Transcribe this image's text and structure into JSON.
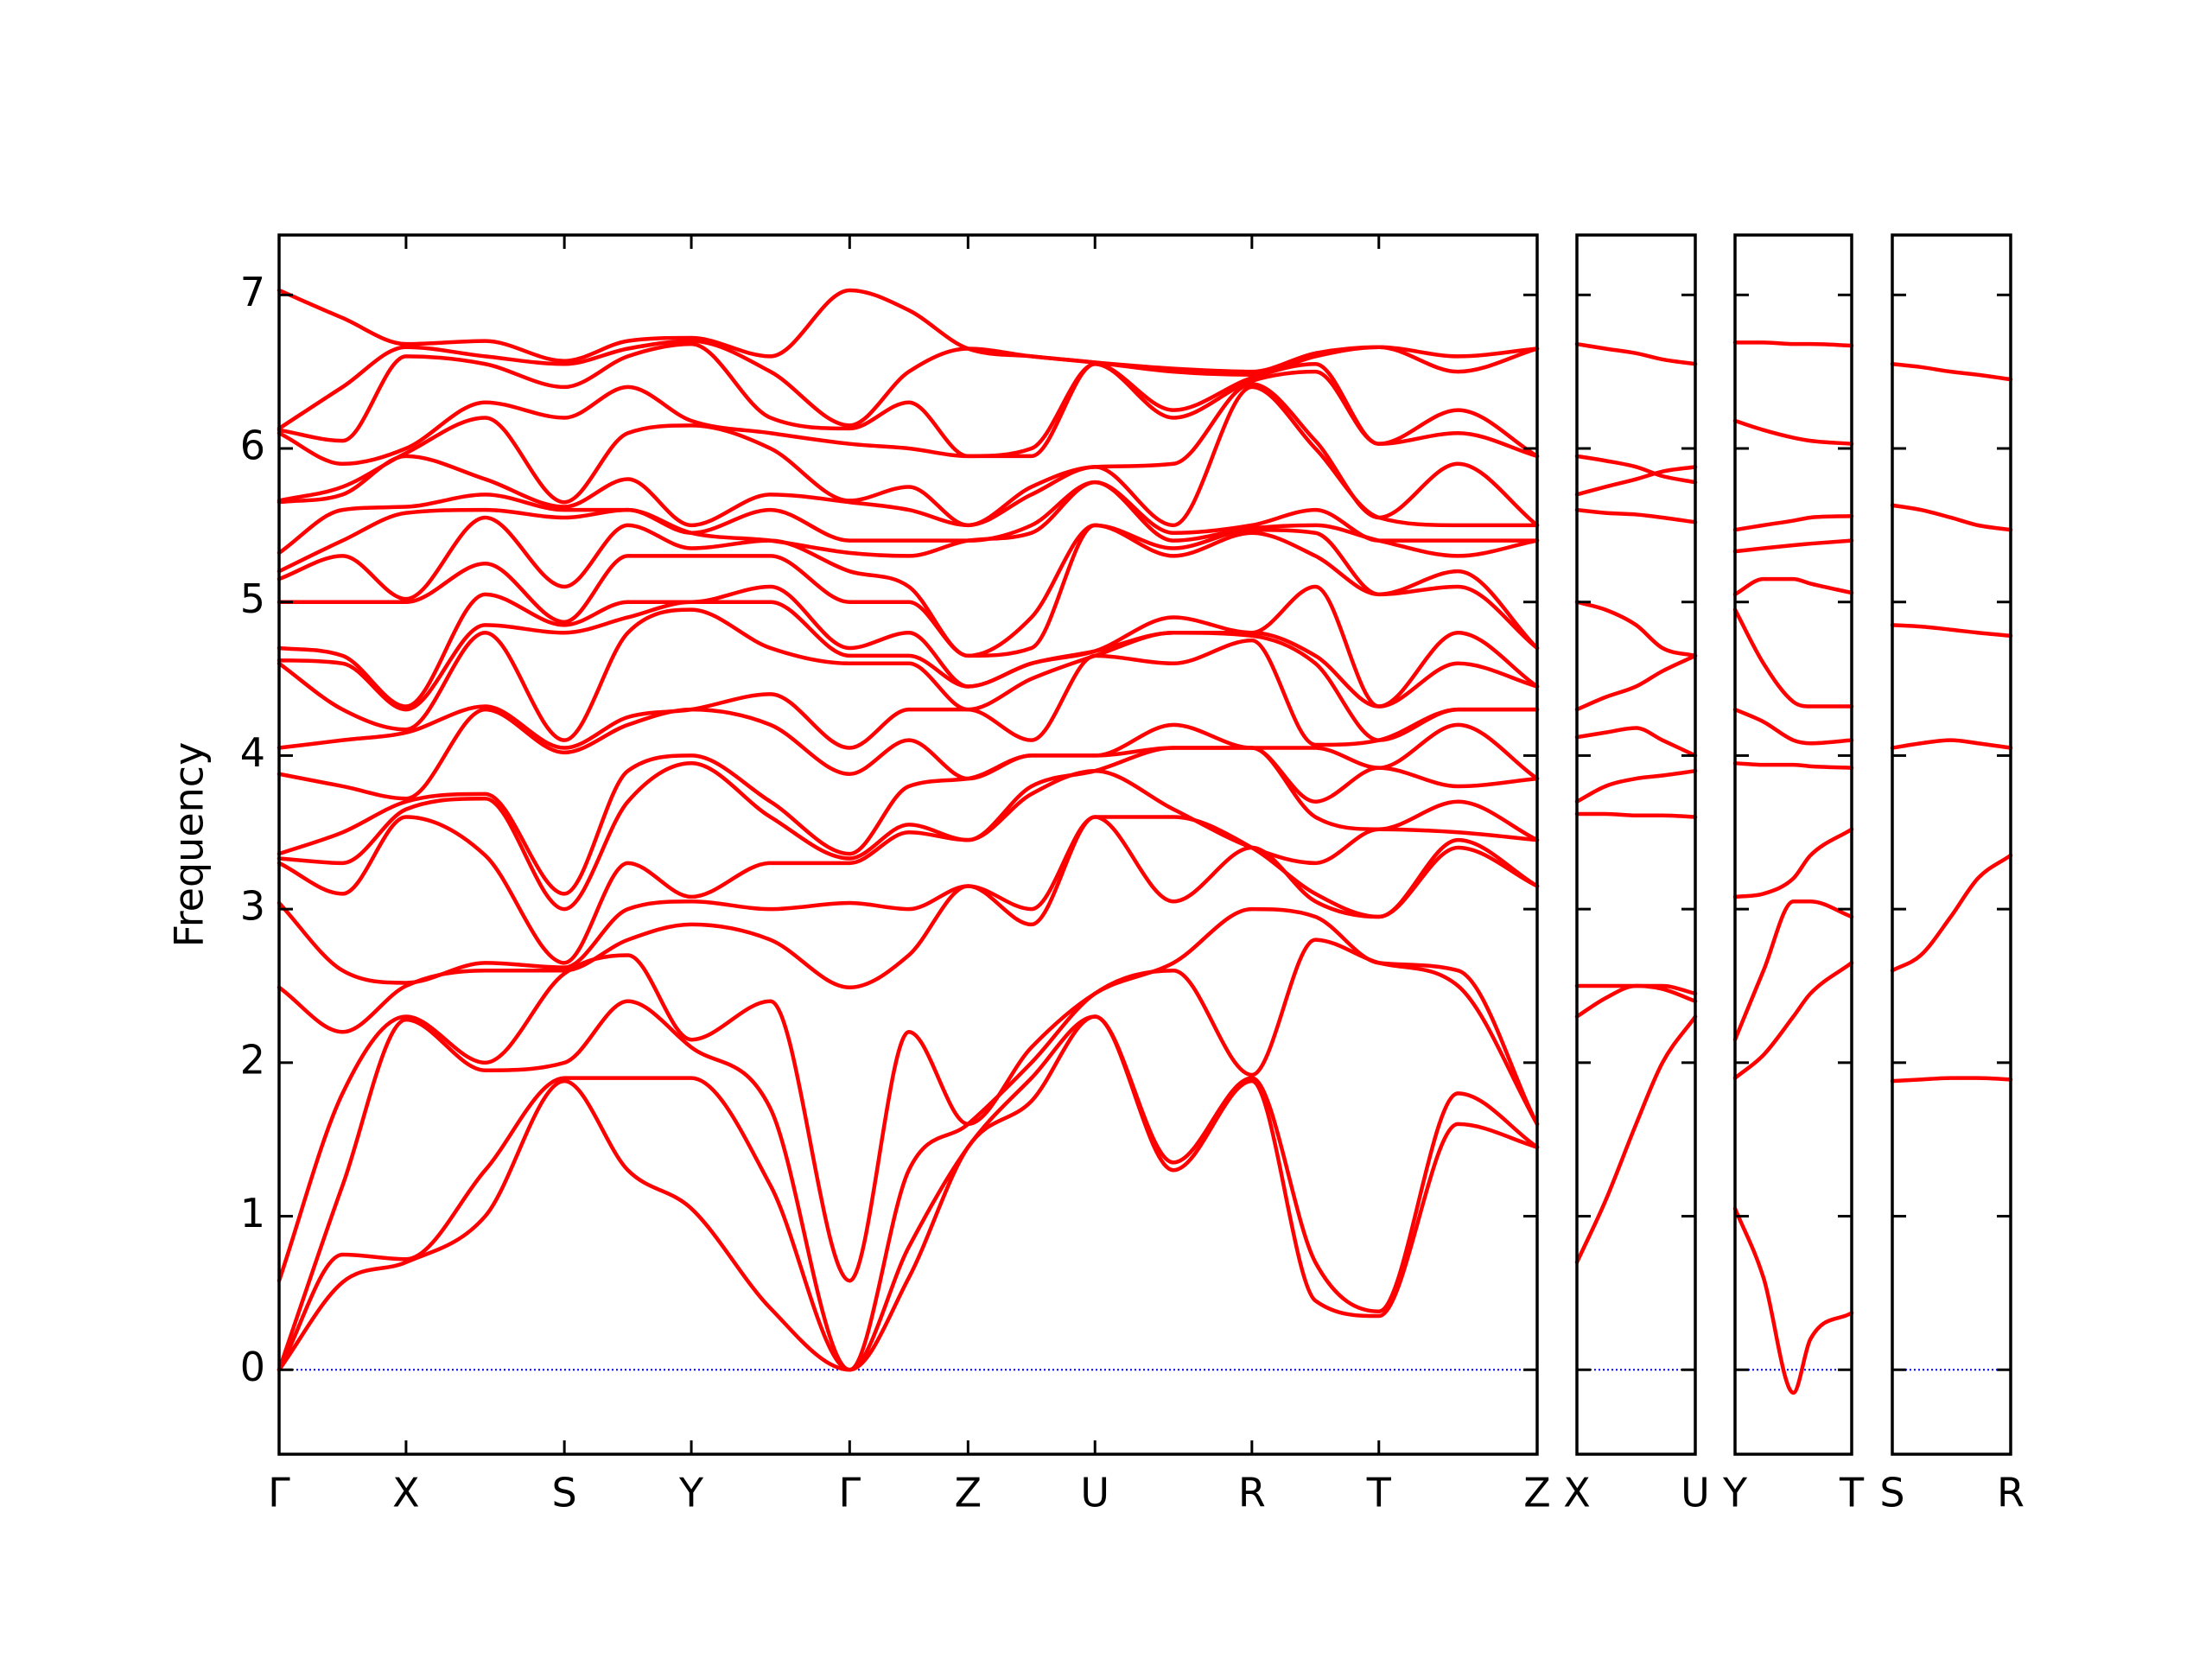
{
  "chart_data": [
    {
      "type": "line",
      "ylabel": "Frequency",
      "color": "#ff0000",
      "show_yticklabels": true,
      "hline": 0,
      "hline_color": "#0000ff",
      "xlim": [
        0,
        8.82
      ],
      "ylim": [
        -0.55,
        7.39
      ],
      "yticks": [
        0,
        1,
        2,
        3,
        4,
        5,
        6,
        7
      ],
      "xticks": [
        {
          "value": 0,
          "label": "Γ"
        },
        {
          "value": 0.89,
          "label": "X"
        },
        {
          "value": 2.0,
          "label": "S"
        },
        {
          "value": 2.89,
          "label": "Y"
        },
        {
          "value": 4.0,
          "label": "Γ"
        },
        {
          "value": 4.83,
          "label": "Z"
        },
        {
          "value": 5.72,
          "label": "U"
        },
        {
          "value": 6.82,
          "label": "R"
        },
        {
          "value": 7.71,
          "label": "T"
        },
        {
          "value": 8.82,
          "label": "Z"
        }
      ],
      "x": [
        0,
        0.445,
        0.89,
        1.445,
        2.0,
        2.445,
        2.89,
        3.445,
        4.0,
        4.415,
        4.83,
        5.275,
        5.72,
        6.27,
        6.82,
        7.265,
        7.71,
        8.265,
        8.82
      ],
      "series": [
        {
          "values": [
            0,
            0.57,
            0.7,
            1.0,
            1.88,
            1.3,
            1.05,
            0.4,
            0,
            0.6,
            1.45,
            1.75,
            2.3,
            1.3,
            1.88,
            0.45,
            0.35,
            1.6,
            1.45
          ]
        },
        {
          "values": [
            0,
            0.75,
            0.72,
            1.3,
            1.9,
            1.9,
            1.9,
            1.2,
            0,
            0.8,
            1.45,
            1.9,
            2.3,
            1.35,
            1.9,
            0.7,
            0.38,
            1.8,
            1.45
          ]
        },
        {
          "values": [
            0,
            1.2,
            2.28,
            1.95,
            2.0,
            2.4,
            2.1,
            1.7,
            0,
            1.3,
            1.6,
            2.0,
            2.45,
            2.6,
            1.92,
            2.8,
            2.65,
            2.5,
            1.6
          ]
        },
        {
          "values": [
            0.58,
            1.8,
            2.3,
            2.0,
            2.58,
            2.7,
            2.15,
            2.4,
            0.58,
            2.2,
            1.6,
            2.1,
            2.45,
            2.65,
            3.0,
            2.95,
            2.65,
            2.6,
            1.6
          ]
        },
        {
          "values": [
            2.49,
            2.2,
            2.5,
            2.6,
            2.6,
            2.8,
            2.9,
            2.8,
            2.49,
            2.7,
            3.15,
            2.9,
            3.6,
            3.05,
            3.4,
            3.05,
            2.95,
            3.4,
            3.15
          ]
        },
        {
          "values": [
            3.04,
            2.6,
            2.52,
            2.65,
            2.62,
            3.0,
            3.05,
            3.0,
            3.04,
            3.0,
            3.15,
            3.0,
            3.6,
            3.6,
            3.4,
            3.1,
            2.95,
            3.45,
            3.15
          ]
        },
        {
          "values": [
            3.3,
            3.1,
            3.6,
            3.35,
            2.65,
            3.3,
            3.08,
            3.3,
            3.3,
            3.5,
            3.45,
            3.75,
            3.9,
            3.65,
            3.4,
            3.3,
            3.52,
            3.5,
            3.45
          ]
        },
        {
          "values": [
            3.33,
            3.3,
            3.65,
            3.72,
            3.0,
            3.7,
            3.95,
            3.6,
            3.33,
            3.55,
            3.45,
            3.8,
            3.9,
            4.05,
            4.05,
            3.6,
            3.52,
            3.7,
            3.45
          ]
        },
        {
          "values": [
            3.36,
            3.5,
            3.7,
            3.75,
            3.1,
            3.9,
            4.0,
            3.7,
            3.36,
            3.8,
            3.85,
            4.0,
            4.0,
            4.05,
            4.05,
            3.7,
            3.92,
            3.8,
            3.85
          ]
        },
        {
          "values": [
            3.88,
            3.8,
            3.72,
            4.3,
            4.02,
            4.2,
            4.3,
            4.2,
            3.88,
            4.1,
            3.85,
            4.0,
            4.0,
            4.2,
            4.05,
            4.05,
            3.92,
            4.2,
            3.85
          ]
        },
        {
          "values": [
            4.05,
            4.1,
            4.15,
            4.32,
            4.05,
            4.25,
            4.3,
            4.4,
            4.05,
            4.3,
            4.3,
            4.1,
            4.65,
            4.6,
            4.75,
            4.07,
            4.1,
            4.3,
            4.3
          ]
        },
        {
          "values": [
            4.6,
            4.3,
            4.17,
            4.8,
            4.1,
            4.8,
            4.95,
            4.7,
            4.6,
            4.6,
            4.3,
            4.5,
            4.65,
            4.8,
            4.78,
            4.6,
            4.1,
            4.3,
            4.3
          ]
        },
        {
          "values": [
            4.62,
            4.6,
            4.3,
            4.85,
            4.8,
            4.9,
            5.0,
            5.0,
            4.65,
            4.65,
            4.45,
            4.6,
            4.68,
            4.8,
            4.8,
            4.65,
            4.32,
            4.6,
            4.45
          ]
        },
        {
          "values": [
            4.7,
            4.65,
            4.32,
            5.05,
            4.85,
            5.0,
            5.0,
            5.1,
            4.7,
            4.8,
            4.45,
            4.6,
            4.68,
            4.9,
            4.8,
            5.1,
            4.32,
            4.8,
            4.45
          ]
        },
        {
          "values": [
            5.0,
            5.0,
            5.0,
            5.25,
            4.87,
            5.3,
            5.3,
            5.3,
            5.0,
            5.0,
            4.65,
            4.7,
            5.5,
            5.3,
            5.45,
            5.3,
            5.05,
            5.1,
            4.7
          ]
        },
        {
          "values": [
            5.15,
            5.3,
            5.02,
            5.55,
            5.1,
            5.5,
            5.35,
            5.4,
            5.2,
            5.1,
            4.65,
            4.9,
            5.5,
            5.35,
            5.47,
            5.45,
            5.05,
            5.2,
            4.7
          ]
        },
        {
          "values": [
            5.2,
            5.4,
            5.58,
            5.6,
            5.55,
            5.6,
            5.45,
            5.4,
            5.32,
            5.3,
            5.4,
            5.45,
            5.78,
            5.4,
            5.48,
            5.5,
            5.4,
            5.3,
            5.4
          ]
        },
        {
          "values": [
            5.32,
            5.6,
            5.62,
            5.7,
            5.6,
            5.6,
            5.45,
            5.6,
            5.4,
            5.4,
            5.4,
            5.5,
            5.78,
            5.45,
            5.5,
            5.6,
            5.4,
            5.4,
            5.4
          ]
        },
        {
          "values": [
            5.65,
            5.7,
            5.95,
            5.8,
            5.62,
            5.8,
            5.5,
            5.7,
            5.65,
            5.6,
            5.5,
            5.7,
            5.88,
            5.5,
            6.4,
            6.0,
            5.55,
            5.5,
            5.5
          ]
        },
        {
          "values": [
            5.66,
            5.75,
            5.97,
            6.2,
            5.65,
            6.1,
            6.15,
            6.0,
            5.66,
            5.75,
            5.5,
            5.75,
            5.88,
            5.9,
            6.42,
            6.05,
            5.55,
            5.9,
            5.5
          ]
        },
        {
          "values": [
            6.1,
            5.9,
            6.0,
            6.3,
            6.2,
            6.4,
            6.18,
            6.1,
            6.03,
            6.0,
            5.95,
            5.95,
            6.55,
            6.2,
            6.44,
            6.5,
            6.03,
            6.1,
            5.95
          ]
        },
        {
          "values": [
            6.12,
            6.05,
            6.6,
            6.55,
            6.4,
            6.6,
            6.68,
            6.2,
            6.13,
            6.3,
            5.95,
            6.0,
            6.55,
            6.25,
            6.46,
            6.55,
            6.03,
            6.25,
            5.95
          ]
        },
        {
          "values": [
            6.13,
            6.4,
            6.66,
            6.6,
            6.55,
            6.65,
            6.7,
            6.5,
            6.15,
            6.5,
            6.65,
            6.6,
            6.56,
            6.5,
            6.48,
            6.6,
            6.66,
            6.5,
            6.65
          ]
        },
        {
          "values": [
            7.03,
            6.85,
            6.68,
            6.7,
            6.57,
            6.7,
            6.72,
            6.6,
            7.03,
            6.9,
            6.65,
            6.6,
            6.56,
            6.52,
            6.5,
            6.62,
            6.66,
            6.6,
            6.65
          ]
        }
      ]
    },
    {
      "type": "line",
      "color": "#ff0000",
      "show_yticklabels": false,
      "hline": 0,
      "hline_color": "#0000ff",
      "xlim": [
        0,
        0.83
      ],
      "ylim": [
        -0.55,
        7.39
      ],
      "yticks": [
        0,
        1,
        2,
        3,
        4,
        5,
        6,
        7
      ],
      "xticks": [
        {
          "value": 0,
          "label": "X"
        },
        {
          "value": 0.83,
          "label": "U"
        }
      ],
      "x": [
        0,
        0.2,
        0.415,
        0.6,
        0.83
      ],
      "series": [
        {
          "values": [
            0.7,
            1.1,
            1.6,
            2.0,
            2.3
          ]
        },
        {
          "values": [
            2.3,
            2.42,
            2.5,
            2.5,
            2.45
          ]
        },
        {
          "values": [
            2.5,
            2.5,
            2.5,
            2.48,
            2.4
          ]
        },
        {
          "values": [
            3.62,
            3.62,
            3.61,
            3.61,
            3.6
          ]
        },
        {
          "values": [
            3.7,
            3.8,
            3.85,
            3.87,
            3.9
          ]
        },
        {
          "values": [
            4.12,
            4.15,
            4.18,
            4.1,
            4.0
          ]
        },
        {
          "values": [
            4.3,
            4.38,
            4.45,
            4.55,
            4.65
          ]
        },
        {
          "values": [
            5.0,
            4.95,
            4.85,
            4.7,
            4.65
          ]
        },
        {
          "values": [
            5.6,
            5.58,
            5.57,
            5.55,
            5.52
          ]
        },
        {
          "values": [
            5.7,
            5.75,
            5.8,
            5.85,
            5.88
          ]
        },
        {
          "values": [
            5.95,
            5.92,
            5.88,
            5.82,
            5.78
          ]
        },
        {
          "values": [
            6.68,
            6.65,
            6.62,
            6.58,
            6.55
          ]
        }
      ]
    },
    {
      "type": "line",
      "color": "#ff0000",
      "show_yticklabels": false,
      "hline": 0,
      "hline_color": "#0000ff",
      "xlim": [
        0,
        0.82
      ],
      "ylim": [
        -0.55,
        7.39
      ],
      "yticks": [
        0,
        1,
        2,
        3,
        4,
        5,
        6,
        7
      ],
      "xticks": [
        {
          "value": 0,
          "label": "Y"
        },
        {
          "value": 0.82,
          "label": "T"
        }
      ],
      "x": [
        0,
        0.2,
        0.41,
        0.53,
        0.82
      ],
      "series": [
        {
          "values": [
            1.05,
            0.6,
            -0.15,
            0.2,
            0.37
          ]
        },
        {
          "values": [
            1.9,
            2.05,
            2.3,
            2.45,
            2.65
          ]
        },
        {
          "values": [
            2.15,
            2.6,
            3.05,
            3.05,
            2.95
          ]
        },
        {
          "values": [
            3.08,
            3.1,
            3.2,
            3.35,
            3.52
          ]
        },
        {
          "values": [
            3.95,
            3.94,
            3.94,
            3.93,
            3.92
          ]
        },
        {
          "values": [
            4.3,
            4.22,
            4.1,
            4.08,
            4.1
          ]
        },
        {
          "values": [
            4.95,
            4.6,
            4.35,
            4.32,
            4.32
          ]
        },
        {
          "values": [
            5.05,
            5.15,
            5.15,
            5.12,
            5.06
          ]
        },
        {
          "values": [
            5.33,
            5.35,
            5.37,
            5.38,
            5.4
          ]
        },
        {
          "values": [
            5.47,
            5.5,
            5.53,
            5.55,
            5.56
          ]
        },
        {
          "values": [
            6.18,
            6.12,
            6.07,
            6.05,
            6.03
          ]
        },
        {
          "values": [
            6.69,
            6.69,
            6.68,
            6.68,
            6.67
          ]
        }
      ]
    },
    {
      "type": "line",
      "color": "#ff0000",
      "show_yticklabels": false,
      "hline": 0,
      "hline_color": "#0000ff",
      "xlim": [
        0,
        0.83
      ],
      "ylim": [
        -0.55,
        7.39
      ],
      "yticks": [
        0,
        1,
        2,
        3,
        4,
        5,
        6,
        7
      ],
      "xticks": [
        {
          "value": 0,
          "label": "S"
        },
        {
          "value": 0.83,
          "label": "R"
        }
      ],
      "x": [
        0,
        0.2,
        0.41,
        0.6,
        0.83
      ],
      "series": [
        {
          "values": [
            1.88,
            1.89,
            1.9,
            1.9,
            1.89
          ]
        },
        {
          "values": [
            2.6,
            2.7,
            2.95,
            3.2,
            3.35
          ]
        },
        {
          "values": [
            4.05,
            4.08,
            4.1,
            4.08,
            4.05
          ]
        },
        {
          "values": [
            4.85,
            4.84,
            4.82,
            4.8,
            4.78
          ]
        },
        {
          "values": [
            5.63,
            5.6,
            5.55,
            5.5,
            5.47
          ]
        },
        {
          "values": [
            6.55,
            6.53,
            6.5,
            6.48,
            6.45
          ]
        }
      ]
    }
  ]
}
